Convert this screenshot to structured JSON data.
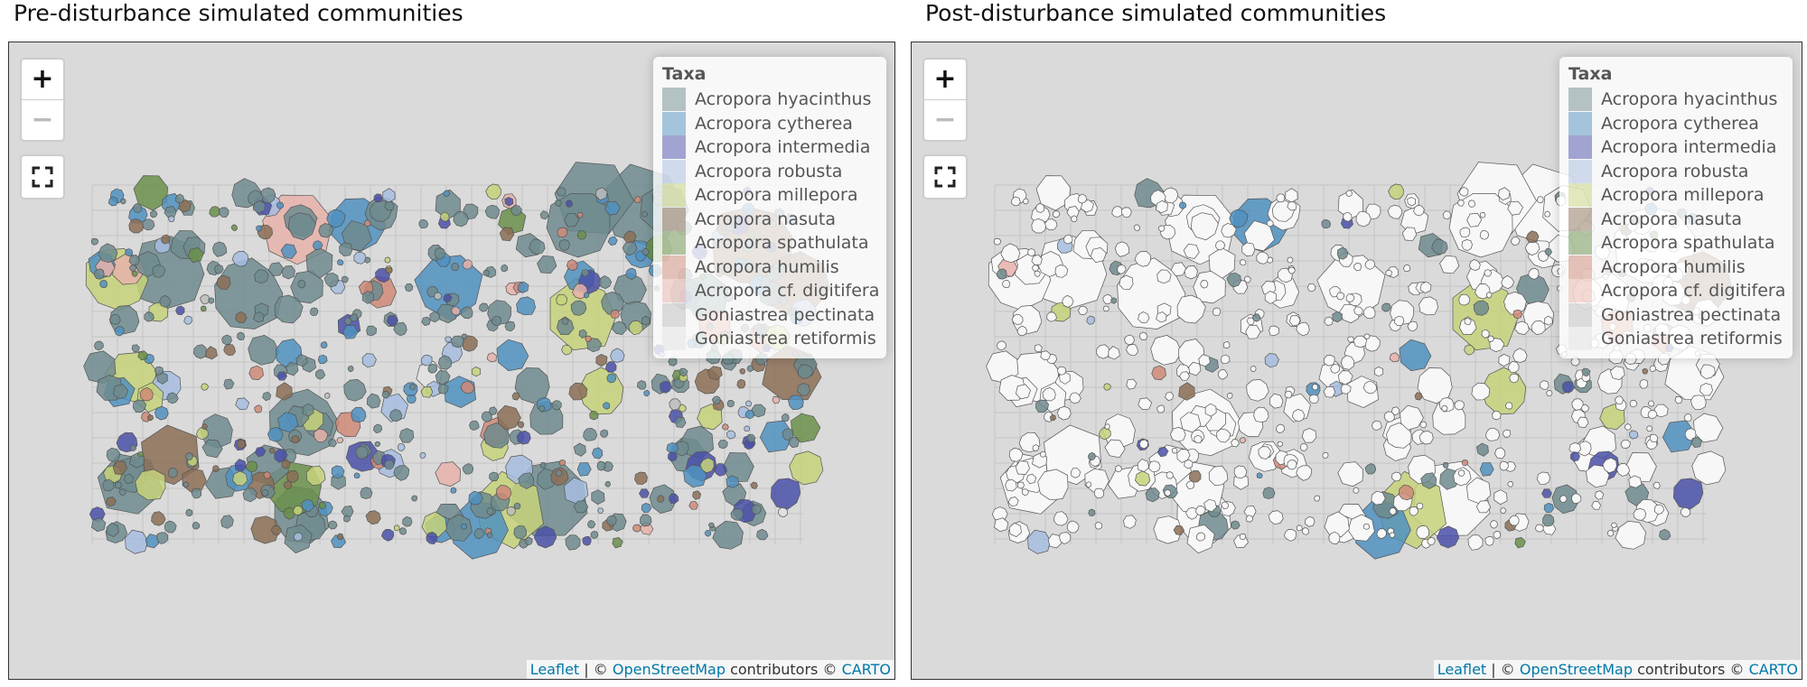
{
  "panels": [
    {
      "title": "Pre-disturbance simulated communities"
    },
    {
      "title": "Post-disturbance simulated communities"
    }
  ],
  "controls": {
    "zoom_in": "+",
    "zoom_out": "−"
  },
  "legend": {
    "title": "Taxa",
    "items": [
      {
        "name": "Acropora hyacinthus",
        "color": "#6f8b8e"
      },
      {
        "name": "Acropora cytherea",
        "color": "#4f90bf"
      },
      {
        "name": "Acropora intermedia",
        "color": "#4a50a8"
      },
      {
        "name": "Acropora robusta",
        "color": "#a6bde0"
      },
      {
        "name": "Acropora millepora",
        "color": "#c6d27a"
      },
      {
        "name": "Acropora nasuta",
        "color": "#8b6e56"
      },
      {
        "name": "Acropora spathulata",
        "color": "#6a8f4a"
      },
      {
        "name": "Acropora humilis",
        "color": "#d08a78"
      },
      {
        "name": "Acropora cf. digitifera",
        "color": "#e8b2aa"
      },
      {
        "name": "Goniastrea pectinata",
        "color": "#bdbdbd"
      },
      {
        "name": "Goniastrea retiformis",
        "color": "#e2e2e2"
      }
    ]
  },
  "attribution": {
    "leaflet": "Leaflet",
    "sep": "| ©",
    "osm": "OpenStreetMap",
    "contrib": "contributors ©",
    "carto": "CARTO"
  }
}
